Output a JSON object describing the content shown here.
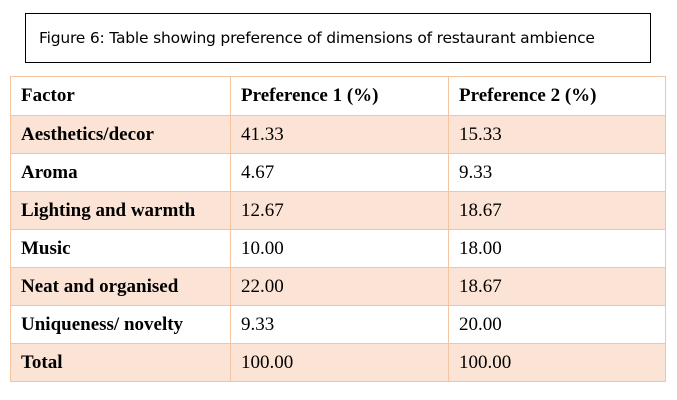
{
  "caption": "Figure 6: Table showing preference of dimensions of restaurant ambience",
  "table": {
    "headers": [
      "Factor",
      "Preference 1 (%)",
      "Preference 2 (%)"
    ],
    "rows": [
      {
        "factor": "Aesthetics/decor",
        "pref1": "41.33",
        "pref2": "15.33"
      },
      {
        "factor": "Aroma",
        "pref1": "4.67",
        "pref2": "9.33"
      },
      {
        "factor": "Lighting and warmth",
        "pref1": "12.67",
        "pref2": "18.67"
      },
      {
        "factor": "Music",
        "pref1": "10.00",
        "pref2": "18.00"
      },
      {
        "factor": "Neat and organised",
        "pref1": "22.00",
        "pref2": "18.67"
      },
      {
        "factor": "Uniqueness/ novelty",
        "pref1": "9.33",
        "pref2": "20.00"
      },
      {
        "factor": "Total",
        "pref1": "100.00",
        "pref2": "100.00"
      }
    ]
  },
  "colors": {
    "row_shade": "#fbe3d5",
    "border": "#f3c49f"
  }
}
